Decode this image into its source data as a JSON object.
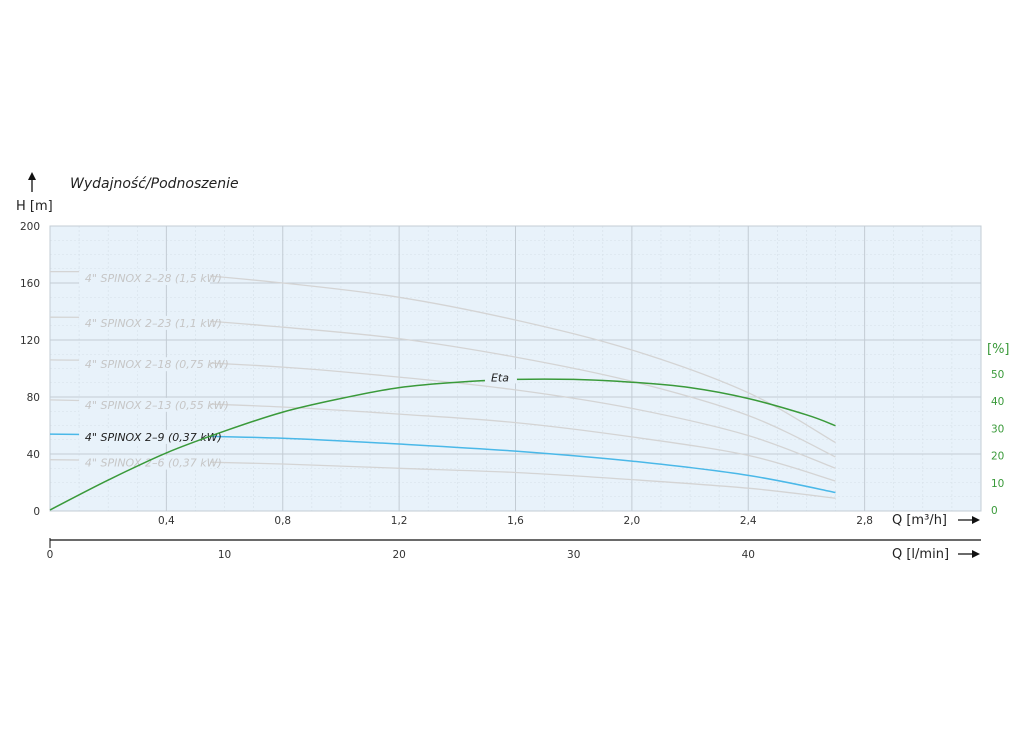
{
  "chart_data": {
    "type": "line",
    "title": "Wydajność/Podnoszenie",
    "y_axis": {
      "label": "H [m]",
      "range": [
        0,
        200
      ],
      "ticks": [
        "200",
        "160",
        "120",
        "80",
        "40",
        "0"
      ]
    },
    "y2_axis": {
      "label": "[%]",
      "range": [
        0,
        100
      ],
      "ticks": [
        "50",
        "40",
        "30",
        "20",
        "10",
        "0"
      ]
    },
    "x_axis": {
      "label": "Q  [m³/h]",
      "range": [
        0,
        3.2
      ],
      "ticks": [
        "0,4",
        "0,8",
        "1,2",
        "1,6",
        "2,0",
        "2,4",
        "2,8"
      ]
    },
    "x2_axis": {
      "label": "Q  [l/min]",
      "range": [
        0,
        53.33
      ],
      "ticks": [
        "0",
        "10",
        "20",
        "30",
        "40"
      ]
    },
    "grid": true,
    "colors": {
      "background": "#e8f2fa",
      "grid_major": "#c3ccd4",
      "grid_minor": "#d6e0e8",
      "curve_inactive": "#d4d4d4",
      "curve_active": "#4ab8e8",
      "eta": "#3a9a3a",
      "label_inactive": "#c6c6c6",
      "label_active": "#222222"
    },
    "series": [
      {
        "name": "4\" SPINOX 2–28 (1,5 kW)",
        "active": false,
        "points": [
          [
            0,
            168
          ],
          [
            0.4,
            167
          ],
          [
            0.8,
            160
          ],
          [
            1.2,
            150
          ],
          [
            1.6,
            134
          ],
          [
            2.0,
            113
          ],
          [
            2.4,
            83
          ],
          [
            2.7,
            48
          ]
        ]
      },
      {
        "name": "4\" SPINOX 2–23 (1,1 kW)",
        "active": false,
        "points": [
          [
            0,
            136
          ],
          [
            0.4,
            135
          ],
          [
            0.8,
            129
          ],
          [
            1.2,
            121
          ],
          [
            1.6,
            108
          ],
          [
            2.0,
            91
          ],
          [
            2.4,
            67
          ],
          [
            2.7,
            38
          ]
        ]
      },
      {
        "name": "4\" SPINOX 2–18 (0,75 kW)",
        "active": false,
        "points": [
          [
            0,
            106
          ],
          [
            0.4,
            105
          ],
          [
            0.8,
            101
          ],
          [
            1.2,
            94
          ],
          [
            1.6,
            85
          ],
          [
            2.0,
            72
          ],
          [
            2.4,
            53
          ],
          [
            2.7,
            30
          ]
        ]
      },
      {
        "name": "4\" SPINOX 2–13 (0,55 kW)",
        "active": false,
        "points": [
          [
            0,
            78
          ],
          [
            0.4,
            76
          ],
          [
            0.8,
            73
          ],
          [
            1.2,
            68
          ],
          [
            1.6,
            62
          ],
          [
            2.0,
            52
          ],
          [
            2.4,
            39
          ],
          [
            2.7,
            21
          ]
        ]
      },
      {
        "name": "4\" SPINOX 2–9 (0,37 kW)",
        "active": true,
        "points": [
          [
            0,
            54
          ],
          [
            0.4,
            53
          ],
          [
            0.8,
            51
          ],
          [
            1.2,
            47
          ],
          [
            1.6,
            42
          ],
          [
            2.0,
            35
          ],
          [
            2.4,
            25
          ],
          [
            2.7,
            13
          ]
        ]
      },
      {
        "name": "4\" SPINOX 2–6 (0,37 kW)",
        "active": false,
        "points": [
          [
            0,
            36
          ],
          [
            0.4,
            35
          ],
          [
            0.8,
            33
          ],
          [
            1.2,
            30
          ],
          [
            1.6,
            27
          ],
          [
            2.0,
            22
          ],
          [
            2.4,
            16
          ],
          [
            2.7,
            9
          ]
        ]
      }
    ],
    "efficiency": {
      "name": "Eta",
      "axis": "y2",
      "points": [
        [
          0,
          0
        ],
        [
          0.2,
          11
        ],
        [
          0.4,
          21
        ],
        [
          0.6,
          29
        ],
        [
          0.8,
          36
        ],
        [
          1.0,
          41
        ],
        [
          1.2,
          45
        ],
        [
          1.4,
          47
        ],
        [
          1.6,
          48
        ],
        [
          1.8,
          48
        ],
        [
          2.0,
          47
        ],
        [
          2.2,
          45
        ],
        [
          2.4,
          41
        ],
        [
          2.6,
          35
        ],
        [
          2.7,
          31
        ]
      ]
    }
  }
}
